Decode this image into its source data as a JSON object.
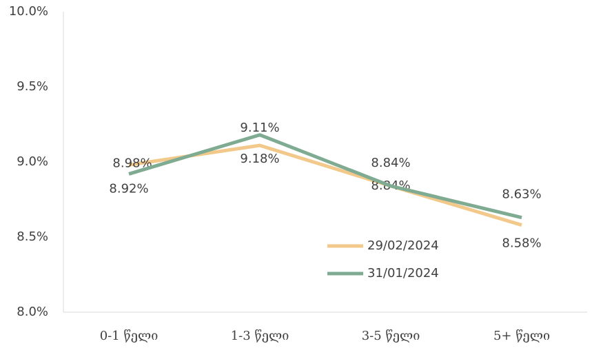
{
  "chart_data": {
    "type": "line",
    "categories": [
      "0-1 წელი",
      "1-3 წელი",
      "3-5 წელი",
      "5+ წელი"
    ],
    "series": [
      {
        "name": "29/02/2024",
        "color": "#f2c98a",
        "values": [
          8.98,
          9.11,
          8.84,
          8.58
        ],
        "value_labels": [
          "8.98%",
          "9.11%",
          "8.84%",
          "8.58%"
        ]
      },
      {
        "name": "31/01/2024",
        "color": "#7fab92",
        "values": [
          8.92,
          9.18,
          8.84,
          8.63
        ],
        "value_labels": [
          "8.92%",
          "9.18%",
          "8.84%",
          "8.63%"
        ]
      }
    ],
    "ylim": [
      8.0,
      10.0
    ],
    "yticks": [
      {
        "value": 8.0,
        "label": "8.0%"
      },
      {
        "value": 8.5,
        "label": "8.5%"
      },
      {
        "value": 9.0,
        "label": "9.0%"
      },
      {
        "value": 9.5,
        "label": "9.5%"
      },
      {
        "value": 10.0,
        "label": "10.0%"
      }
    ],
    "grid": false,
    "legend": "inside-right"
  }
}
